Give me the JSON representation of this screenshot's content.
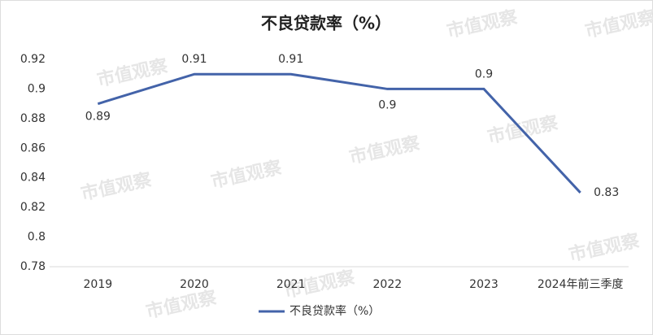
{
  "chart_data": {
    "type": "line",
    "title": "不良贷款率（%）",
    "categories": [
      "2019",
      "2020",
      "2021",
      "2022",
      "2023",
      "2024年前三季度"
    ],
    "series": [
      {
        "name": "不良贷款率（%）",
        "color": "#4363a9",
        "values": [
          0.89,
          0.91,
          0.91,
          0.9,
          0.9,
          0.83
        ]
      }
    ],
    "ylim": [
      0.78,
      0.92
    ],
    "yticks": [
      0.78,
      0.8,
      0.82,
      0.84,
      0.86,
      0.88,
      0.9,
      0.92
    ],
    "grid": false,
    "legend": "bottom",
    "watermark": "市值观察"
  }
}
